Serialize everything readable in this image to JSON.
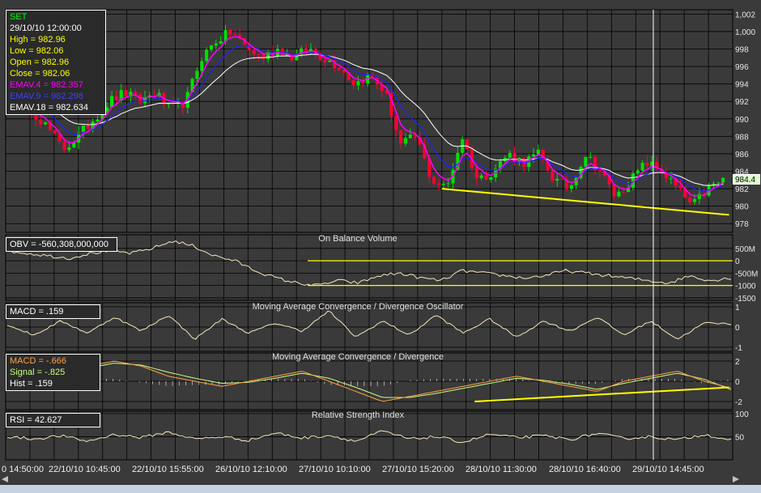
{
  "symbol": "SET",
  "info": {
    "datetime": "29/10/10 12:00:00",
    "high": "High  = 982.96",
    "low": "Low   = 982.06",
    "open": "Open  = 982.96",
    "close": "Close = 982.06",
    "emav4": "EMAV.4 = 982.357",
    "emav9": "EMAV.9 = 982.298",
    "emav18": "EMAV.18 = 982.634"
  },
  "colors": {
    "background": "#3a3a3a",
    "grid": "#000000",
    "up_candle": "#00e000",
    "down_candle": "#ff0030",
    "emav4": "#ff00ff",
    "emav9": "#2020ff",
    "emav18": "#ffffff",
    "trendline": "#ffff00",
    "macd_line": "#ffa040",
    "signal_line": "#c8ff80",
    "osc_line": "#f5e6b8",
    "info_high": "#ffff00",
    "info_emav4": "#ff00ff",
    "info_emav9": "#3030ff",
    "info_symbol": "#00ff00"
  },
  "current_price_label": "984.4",
  "chart_data": [
    {
      "panel": "price",
      "type": "candlestick",
      "ylim": [
        977,
        1002.5
      ],
      "yticks": [
        "978",
        "980",
        "982",
        "984",
        "986",
        "988",
        "990",
        "992",
        "994",
        "996",
        "998",
        "1,000",
        "1,002"
      ],
      "ytick_values": [
        978,
        980,
        982,
        984,
        986,
        988,
        990,
        992,
        994,
        996,
        998,
        1000,
        1002
      ],
      "close_anchors": [
        993,
        991,
        989,
        986.5,
        988,
        990,
        992,
        993,
        992,
        993,
        991,
        992,
        997,
        999,
        1000,
        998,
        997,
        998,
        997,
        998,
        997,
        996,
        994,
        995,
        993,
        987,
        988,
        983,
        982,
        988,
        983,
        984,
        986,
        985,
        986,
        983,
        982,
        986,
        984,
        981,
        983,
        985,
        984,
        982,
        980,
        982,
        983
      ],
      "series": [
        {
          "name": "EMAV.4"
        },
        {
          "name": "EMAV.9"
        },
        {
          "name": "EMAV.18"
        }
      ],
      "trendline": [
        {
          "x": 0.6,
          "y": 982
        },
        {
          "x": 0.995,
          "y": 979
        }
      ]
    },
    {
      "panel": "obv",
      "title": "On Balance Volume",
      "label": "OBV = -560,308,000,000",
      "type": "line",
      "ylim": [
        -1600,
        1050
      ],
      "yticks": [
        "500M",
        "0",
        "-500M",
        "-1000",
        "-1500"
      ],
      "ytick_values": [
        500,
        0,
        -500,
        -1000,
        -1500
      ],
      "anchors": [
        400,
        300,
        200,
        100,
        300,
        400,
        300,
        500,
        800,
        600,
        200,
        0,
        -400,
        -700,
        -900,
        -1000,
        -800,
        -900,
        -600,
        -500,
        -700,
        -800,
        -400,
        -500,
        -600,
        -700,
        -600,
        -400,
        -500,
        -600,
        -700,
        -800,
        -900,
        -600,
        -800,
        -700
      ],
      "hlines": [
        0,
        -1000
      ]
    },
    {
      "panel": "macd_osc",
      "title": "Moving Average Convergence / Divergence Oscillator",
      "label": "MACD = .159",
      "type": "line",
      "ylim": [
        -1.2,
        1.2
      ],
      "yticks": [
        "1",
        "0",
        "-1"
      ],
      "ytick_values": [
        1,
        0,
        -1
      ],
      "anchors": [
        0.1,
        -0.4,
        0.3,
        -0.3,
        0.5,
        -0.2,
        0.6,
        -0.6,
        0.4,
        -0.3,
        0.2,
        -0.2,
        0.8,
        -0.5,
        0.3,
        -0.4,
        0.6,
        -0.3,
        0.4,
        -0.5,
        0.3,
        -0.2,
        0.5,
        -0.4,
        0.3,
        -0.6,
        0.2,
        0.159
      ]
    },
    {
      "panel": "macd",
      "title": "Moving Average Convergence / Divergence",
      "labels": [
        "MACD = -.666",
        "Signal = -.825",
        "Hist = .159"
      ],
      "type": "line",
      "ylim": [
        -2.8,
        2.8
      ],
      "yticks": [
        "2",
        "0",
        "-2"
      ],
      "ytick_values": [
        2,
        0,
        -2
      ],
      "macd_anchors": [
        0,
        0.5,
        1,
        1.5,
        2,
        1.5,
        0.5,
        0,
        -0.5,
        0,
        0.5,
        1,
        0,
        -1,
        -2,
        -1.5,
        -1,
        -0.5,
        0,
        0.5,
        0,
        -0.5,
        -1,
        0,
        0.5,
        1,
        0,
        -0.666
      ],
      "signal_anchors": [
        0,
        0.3,
        0.8,
        1.3,
        1.8,
        1.6,
        0.9,
        0.3,
        -0.2,
        -0.1,
        0.3,
        0.8,
        0.3,
        -0.6,
        -1.6,
        -1.6,
        -1.2,
        -0.7,
        -0.2,
        0.3,
        0.1,
        -0.3,
        -0.8,
        -0.2,
        0.3,
        0.8,
        0.2,
        -0.825
      ],
      "trendline": [
        {
          "x": 0.645,
          "y": -2
        },
        {
          "x": 0.995,
          "y": -0.6
        }
      ]
    },
    {
      "panel": "rsi",
      "title": "Relative Strength Index",
      "label": "RSI = 42.627",
      "type": "line",
      "ylim": [
        0,
        105
      ],
      "yticks": [
        "100",
        "50"
      ],
      "ytick_values": [
        100,
        50
      ],
      "anchors": [
        50,
        45,
        52,
        40,
        55,
        48,
        60,
        45,
        50,
        42,
        58,
        47,
        53,
        40,
        62,
        45,
        50,
        38,
        55,
        48,
        52,
        44,
        57,
        46,
        50,
        43,
        55,
        42.627
      ]
    }
  ],
  "x_axis": {
    "labels": [
      "0 14:50:00",
      "22/10/10 10:45:00",
      "22/10/10 15:55:00",
      "26/10/10 12:10:00",
      "27/10/10 10:10:00",
      "27/10/10 15:20:00",
      "28/10/10 11:30:00",
      "28/10/10 16:40:00",
      "29/10/10 14:45:00"
    ]
  }
}
